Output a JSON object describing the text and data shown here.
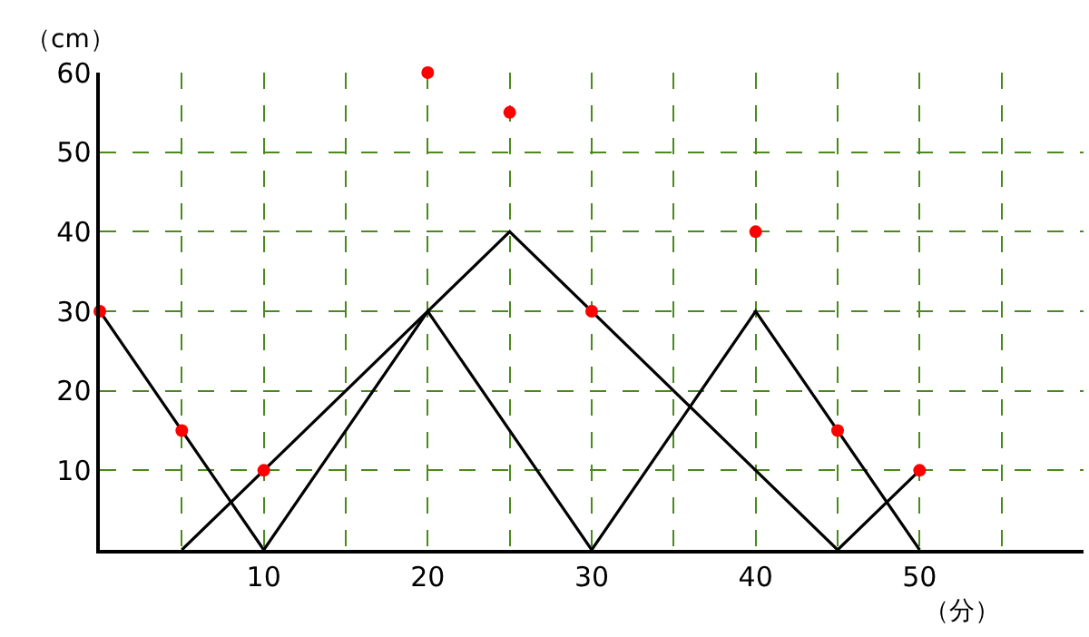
{
  "chart_data": {
    "type": "line",
    "xlabel": "（分）",
    "ylabel": "（cm）",
    "series": [
      {
        "color": "#000000",
        "x": [
          0,
          10,
          20,
          30,
          40,
          50
        ],
        "values": [
          30,
          0,
          30,
          0,
          30,
          0
        ],
        "marker": "none"
      },
      {
        "color": "#000000",
        "x": [
          5,
          25,
          45,
          50
        ],
        "values": [
          0,
          40,
          0,
          10
        ],
        "marker": "none"
      },
      {
        "type": "scatter",
        "color": "#ff0000",
        "x": [
          0,
          5,
          10,
          20,
          25,
          30,
          40,
          45,
          50
        ],
        "values": [
          30,
          15,
          10,
          60,
          55,
          30,
          40,
          15,
          10
        ],
        "marker": "circle"
      }
    ],
    "xlim": [
      0,
      60
    ],
    "ylim": [
      0,
      60
    ],
    "xticks": [
      {
        "value": 5,
        "label": null
      },
      10,
      {
        "value": 15,
        "label": null
      },
      20,
      {
        "value": 25,
        "label": null
      },
      30,
      {
        "value": 35,
        "label": null
      },
      40,
      {
        "value": 45,
        "label": null
      },
      50,
      {
        "value": 55,
        "label": null
      }
    ],
    "yticks": [
      10,
      20,
      30,
      40,
      50,
      60
    ],
    "grid": true
  }
}
